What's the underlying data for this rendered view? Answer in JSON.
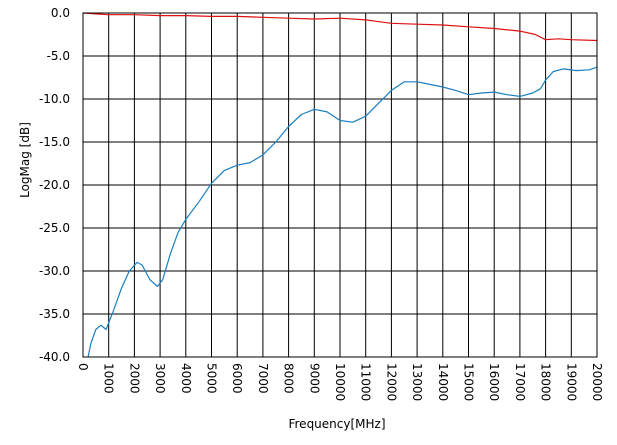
{
  "chart_data": {
    "type": "line",
    "xlabel": "Frequency[MHz]",
    "ylabel": "LogMag [dB]",
    "xlim": [
      0,
      20000
    ],
    "ylim": [
      -40,
      0
    ],
    "grid": true,
    "x_ticks": [
      "0",
      "1000",
      "2000",
      "3000",
      "4000",
      "5000",
      "6000",
      "7000",
      "8000",
      "9000",
      "10000",
      "11000",
      "12000",
      "13000",
      "14000",
      "15000",
      "16000",
      "17000",
      "18000",
      "19000",
      "20000"
    ],
    "y_ticks": [
      "0.0",
      "-5.0",
      "-10.0",
      "-15.0",
      "-20.0",
      "-25.0",
      "-30.0",
      "-35.0",
      "-40.0"
    ],
    "series": [
      {
        "color": "#dd1111",
        "x": [
          0,
          500,
          1000,
          2000,
          3000,
          4000,
          5000,
          6000,
          7000,
          8000,
          9000,
          10000,
          11000,
          12000,
          13000,
          14000,
          15000,
          16000,
          17000,
          17600,
          18000,
          18500,
          19000,
          20000
        ],
        "y": [
          0,
          -0.1,
          -0.2,
          -0.2,
          -0.3,
          -0.3,
          -0.4,
          -0.4,
          -0.5,
          -0.6,
          -0.7,
          -0.6,
          -0.8,
          -1.2,
          -1.3,
          -1.4,
          -1.6,
          -1.8,
          -2.1,
          -2.5,
          -3.1,
          -3.0,
          -3.1,
          -3.2
        ]
      },
      {
        "color": "#1a7fbf",
        "x": [
          200,
          300,
          500,
          700,
          900,
          1200,
          1500,
          1800,
          2100,
          2300,
          2600,
          2900,
          3100,
          3400,
          3700,
          4000,
          4500,
          5000,
          5500,
          6000,
          6500,
          7000,
          7500,
          8000,
          8500,
          9000,
          9500,
          10000,
          10500,
          11000,
          11500,
          12000,
          12500,
          13000,
          13500,
          14000,
          14500,
          15000,
          15500,
          16000,
          16500,
          17000,
          17500,
          17800,
          18000,
          18300,
          18700,
          19200,
          19700,
          20000
        ],
        "y": [
          -40,
          -38.5,
          -36.8,
          -36.3,
          -36.8,
          -34.5,
          -32,
          -30,
          -29,
          -29.3,
          -31,
          -31.8,
          -31,
          -28,
          -25.5,
          -24,
          -22,
          -19.8,
          -18.3,
          -17.7,
          -17.4,
          -16.5,
          -15,
          -13.2,
          -11.8,
          -11.2,
          -11.5,
          -12.5,
          -12.7,
          -12,
          -10.5,
          -9,
          -8,
          -8,
          -8.3,
          -8.6,
          -9,
          -9.5,
          -9.3,
          -9.2,
          -9.5,
          -9.7,
          -9.3,
          -8.8,
          -7.8,
          -6.8,
          -6.5,
          -6.7,
          -6.6,
          -6.3
        ]
      }
    ]
  }
}
